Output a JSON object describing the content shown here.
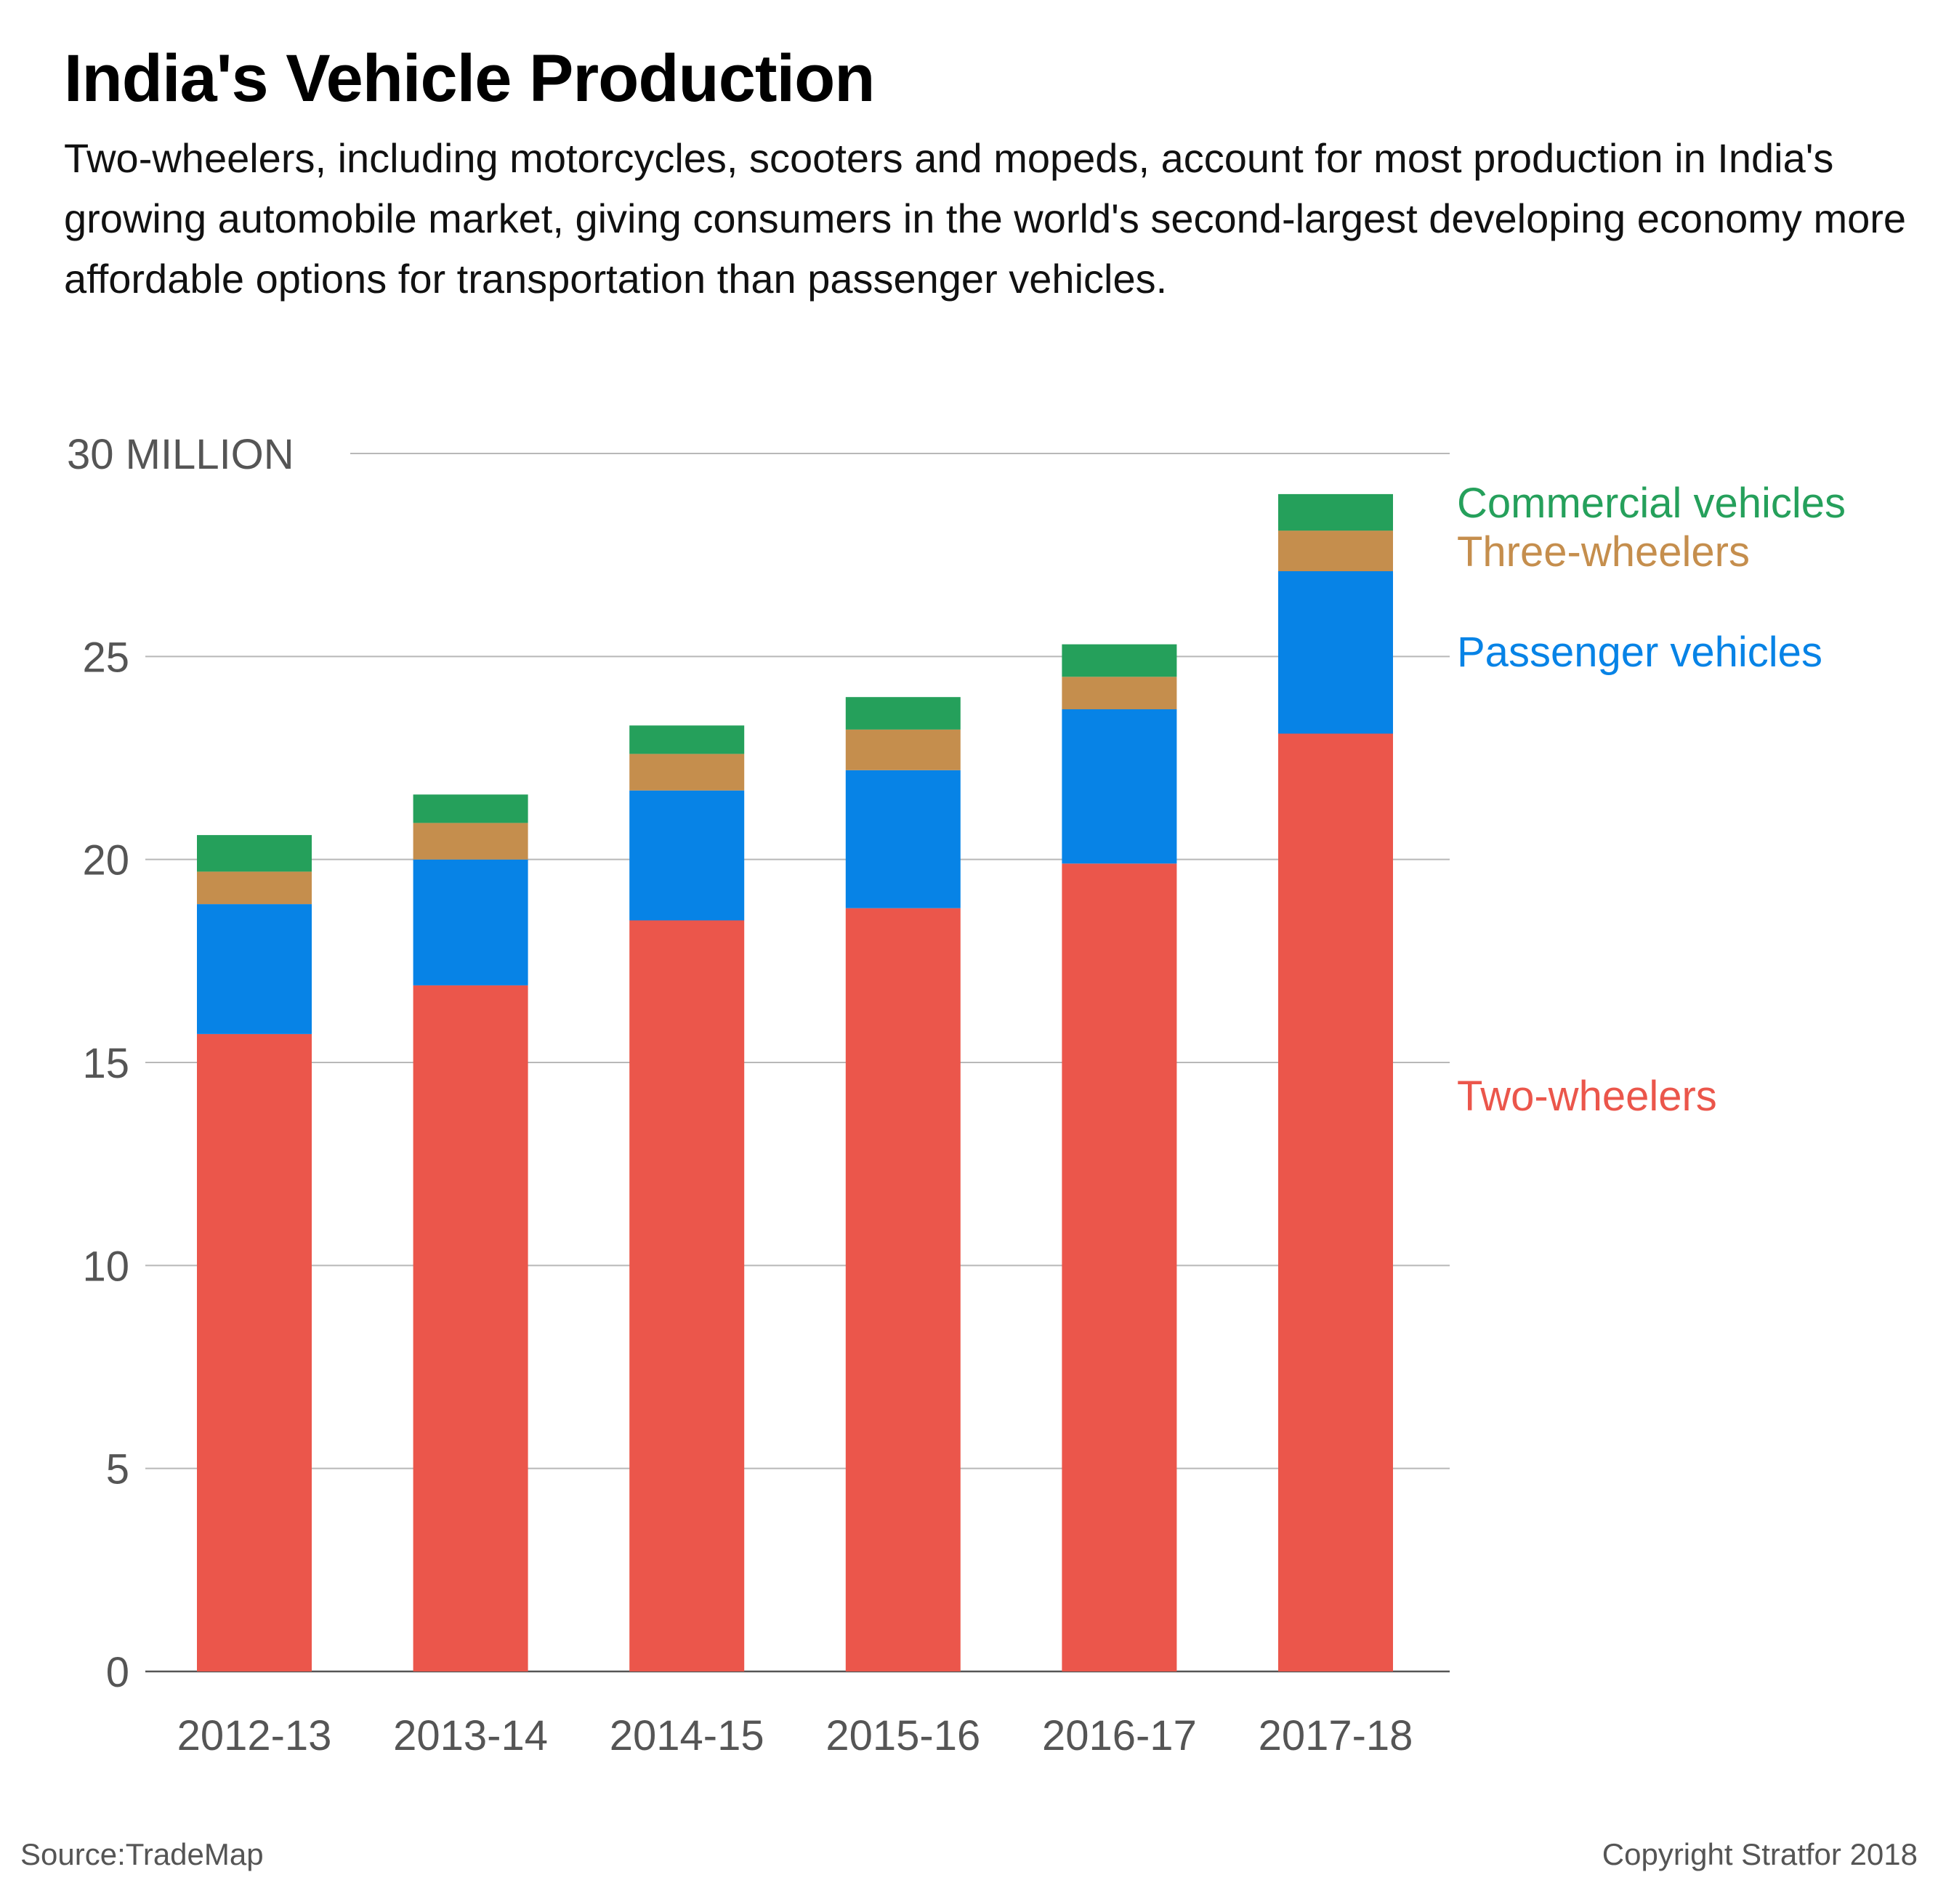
{
  "header": {
    "title": "India's Vehicle Production",
    "subtitle": "Two-wheelers, including motorcycles, scooters and mopeds, account for most production in India's growing automobile market, giving consumers in the world's second-largest developing economy more affordable options for transportation than passenger vehicles."
  },
  "footer": {
    "source": "Source:TradeMap",
    "copyright": "Copyright Stratfor 2018"
  },
  "chart_data": {
    "type": "bar",
    "stacked": true,
    "title": "India's Vehicle Production",
    "xlabel": "",
    "ylabel": "",
    "y_unit_label": "30 MILLION",
    "ylim": [
      0,
      30
    ],
    "yticks": [
      0,
      5,
      10,
      15,
      20,
      25,
      30
    ],
    "ytick_labels": [
      "0",
      "5",
      "10",
      "15",
      "20",
      "25",
      "30 MILLION"
    ],
    "grid": true,
    "legend_placement": "right, labels beside top bar",
    "categories": [
      "2012-13",
      "2013-14",
      "2014-15",
      "2015-16",
      "2016-17",
      "2017-18"
    ],
    "series": [
      {
        "name": "Two-wheelers",
        "color": "#eb564b",
        "values": [
          15.7,
          16.9,
          18.5,
          18.8,
          19.9,
          23.1
        ]
      },
      {
        "name": "Passenger vehicles",
        "color": "#0783e6",
        "values": [
          3.2,
          3.1,
          3.2,
          3.4,
          3.8,
          4.0
        ]
      },
      {
        "name": "Three-wheelers",
        "color": "#c58e4d",
        "values": [
          0.8,
          0.9,
          0.9,
          1.0,
          0.8,
          1.0
        ]
      },
      {
        "name": "Commercial vehicles",
        "color": "#25a05b",
        "values": [
          0.9,
          0.7,
          0.7,
          0.8,
          0.8,
          0.9
        ]
      }
    ]
  }
}
